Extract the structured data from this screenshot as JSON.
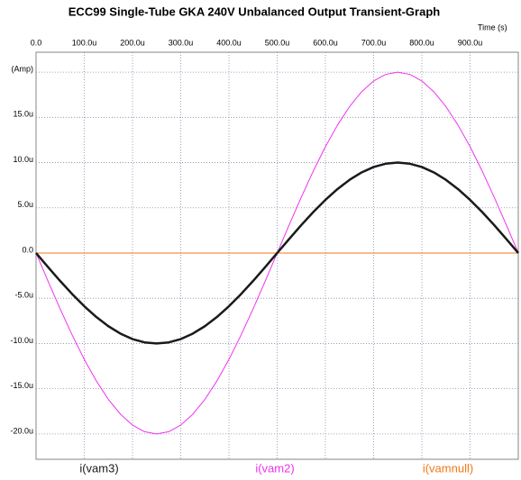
{
  "chart_data": {
    "type": "line",
    "title": "ECC99 Single-Tube GKA 240V Unbalanced Output Transient-Graph",
    "x_label": "Time   (s)",
    "x": [
      0,
      2.5e-05,
      5e-05,
      7.5e-05,
      0.0001,
      0.000125,
      0.00015,
      0.000175,
      0.0002,
      0.000225,
      0.00025,
      0.000275,
      0.0003,
      0.000325,
      0.00035,
      0.000375,
      0.0004,
      0.000425,
      0.00045,
      0.000475,
      0.0005,
      0.000525,
      0.00055,
      0.000575,
      0.0006,
      0.000625,
      0.00065,
      0.000675,
      0.0007,
      0.000725,
      0.00075,
      0.000775,
      0.0008,
      0.000825,
      0.00085,
      0.000875,
      0.0009,
      0.000925,
      0.00095,
      0.000975,
      0.001
    ],
    "series": [
      {
        "name": "i(vam3)",
        "color": "#1a1a1a",
        "width": 2.5,
        "values": [
          0,
          -1.564e-06,
          -3.09e-06,
          -4.54e-06,
          -5.878e-06,
          -7.071e-06,
          -8.09e-06,
          -8.91e-06,
          -9.511e-06,
          -9.877e-06,
          -1e-05,
          -9.877e-06,
          -9.511e-06,
          -8.91e-06,
          -8.09e-06,
          -7.071e-06,
          -5.878e-06,
          -4.54e-06,
          -3.09e-06,
          -1.564e-06,
          0,
          1.564e-06,
          3.09e-06,
          4.54e-06,
          5.878e-06,
          7.071e-06,
          8.09e-06,
          8.91e-06,
          9.511e-06,
          9.877e-06,
          1e-05,
          9.877e-06,
          9.511e-06,
          8.91e-06,
          8.09e-06,
          7.071e-06,
          5.878e-06,
          4.54e-06,
          3.09e-06,
          1.564e-06,
          0
        ]
      },
      {
        "name": "i(vam2)",
        "color": "#ee33ee",
        "width": 1,
        "values": [
          0,
          -3.128e-06,
          -6.18e-06,
          -9.08e-06,
          -1.1756e-05,
          -1.4142e-05,
          -1.618e-05,
          -1.782e-05,
          -1.9022e-05,
          -1.9754e-05,
          -2e-05,
          -1.9754e-05,
          -1.9022e-05,
          -1.782e-05,
          -1.618e-05,
          -1.4142e-05,
          -1.1756e-05,
          -9.08e-06,
          -6.18e-06,
          -3.128e-06,
          0,
          3.128e-06,
          6.18e-06,
          9.08e-06,
          1.1756e-05,
          1.4142e-05,
          1.618e-05,
          1.782e-05,
          1.9022e-05,
          1.9754e-05,
          2e-05,
          1.9754e-05,
          1.9022e-05,
          1.782e-05,
          1.618e-05,
          1.4142e-05,
          1.1756e-05,
          9.08e-06,
          6.18e-06,
          3.128e-06,
          0
        ]
      },
      {
        "name": "i(vamnull)",
        "color": "#f07a1a",
        "width": 1,
        "values": [
          0,
          0,
          0,
          0,
          0,
          0,
          0,
          0,
          0,
          0,
          0,
          0,
          0,
          0,
          0,
          0,
          0,
          0,
          0,
          0,
          0,
          0,
          0,
          0,
          0,
          0,
          0,
          0,
          0,
          0,
          0,
          0,
          0,
          0,
          0,
          0,
          0,
          0,
          0,
          0,
          0
        ]
      }
    ],
    "xlim": [
      0,
      0.001
    ],
    "xticks": [
      {
        "value": 0,
        "label": "0.0"
      },
      {
        "value": 0.0001,
        "label": "100.0u"
      },
      {
        "value": 0.0002,
        "label": "200.0u"
      },
      {
        "value": 0.0003,
        "label": "300.0u"
      },
      {
        "value": 0.0004,
        "label": "400.0u"
      },
      {
        "value": 0.0005,
        "label": "500.0u"
      },
      {
        "value": 0.0006,
        "label": "600.0u"
      },
      {
        "value": 0.0007,
        "label": "700.0u"
      },
      {
        "value": 0.0008,
        "label": "800.0u"
      },
      {
        "value": 0.0009,
        "label": "900.0u"
      }
    ],
    "ylim": [
      -2.28e-05,
      2.22e-05
    ],
    "yticks": [
      {
        "value": 2e-05,
        "label": "(Amp)"
      },
      {
        "value": 1.5e-05,
        "label": "15.0u"
      },
      {
        "value": 1e-05,
        "label": "10.0u"
      },
      {
        "value": 5e-06,
        "label": "5.0u"
      },
      {
        "value": 0,
        "label": "0.0"
      },
      {
        "value": -5e-06,
        "label": "-5.0u"
      },
      {
        "value": -1e-05,
        "label": "-10.0u"
      },
      {
        "value": -1.5e-05,
        "label": "-15.0u"
      },
      {
        "value": -2e-05,
        "label": "-20.0u"
      }
    ],
    "grid": true
  }
}
